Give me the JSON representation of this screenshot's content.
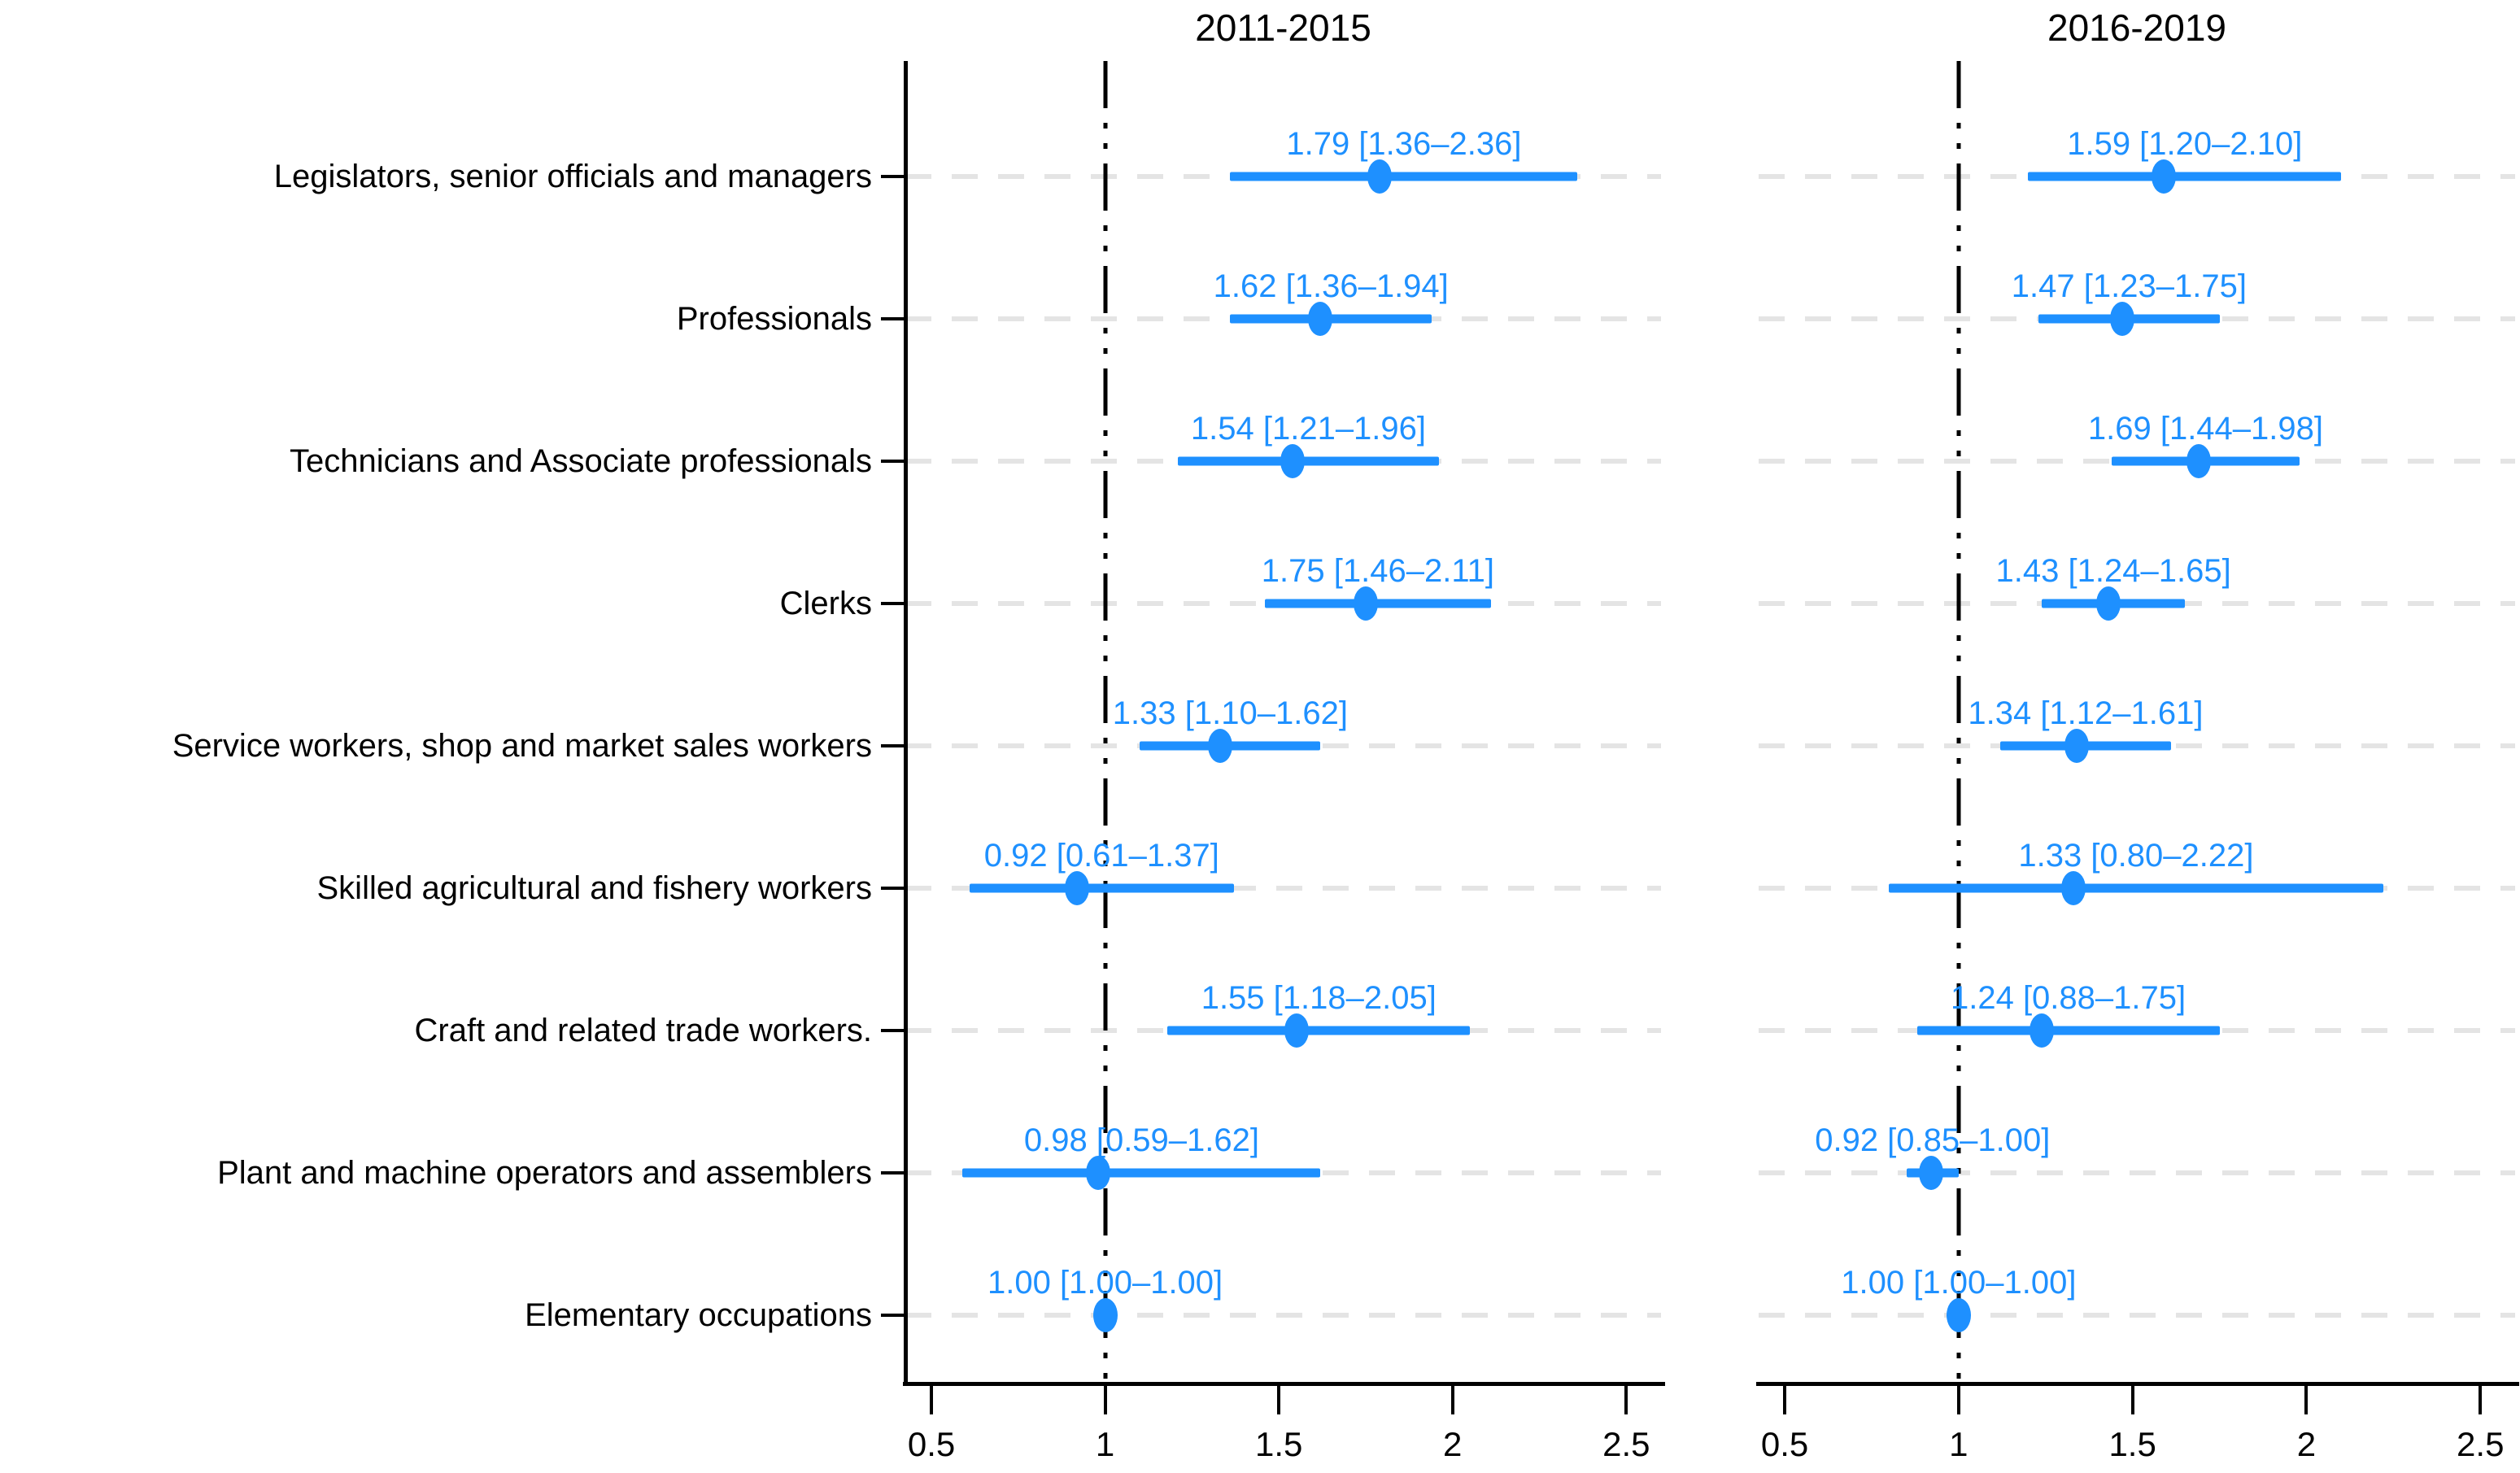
{
  "chart_data": {
    "type": "forest",
    "description": "Two-panel forest plot of estimates with 95% confidence intervals by occupation group",
    "categories": [
      "Legislators, senior officials and managers",
      "Professionals",
      "Technicians and Associate professionals",
      "Clerks",
      "Service workers, shop and market sales workers",
      "Skilled agricultural and fishery workers",
      "Craft and related trade workers.",
      "Plant and machine operators and assemblers",
      "Elementary occupations"
    ],
    "panels": [
      {
        "title": "2011-2015",
        "series": [
          {
            "est": 1.79,
            "lo": 1.36,
            "hi": 2.36,
            "label": "1.79 [1.36–2.36]"
          },
          {
            "est": 1.62,
            "lo": 1.36,
            "hi": 1.94,
            "label": "1.62 [1.36–1.94]"
          },
          {
            "est": 1.54,
            "lo": 1.21,
            "hi": 1.96,
            "label": "1.54 [1.21–1.96]"
          },
          {
            "est": 1.75,
            "lo": 1.46,
            "hi": 2.11,
            "label": "1.75 [1.46–2.11]"
          },
          {
            "est": 1.33,
            "lo": 1.1,
            "hi": 1.62,
            "label": "1.33 [1.10–1.62]"
          },
          {
            "est": 0.92,
            "lo": 0.61,
            "hi": 1.37,
            "label": "0.92 [0.61–1.37]"
          },
          {
            "est": 1.55,
            "lo": 1.18,
            "hi": 2.05,
            "label": "1.55 [1.18–2.05]"
          },
          {
            "est": 0.98,
            "lo": 0.59,
            "hi": 1.62,
            "label": "0.98 [0.59–1.62]"
          },
          {
            "est": 1.0,
            "lo": 1.0,
            "hi": 1.0,
            "label": "1.00 [1.00–1.00]"
          }
        ]
      },
      {
        "title": "2016-2019",
        "series": [
          {
            "est": 1.59,
            "lo": 1.2,
            "hi": 2.1,
            "label": "1.59 [1.20–2.10]"
          },
          {
            "est": 1.47,
            "lo": 1.23,
            "hi": 1.75,
            "label": "1.47 [1.23–1.75]"
          },
          {
            "est": 1.69,
            "lo": 1.44,
            "hi": 1.98,
            "label": "1.69 [1.44–1.98]"
          },
          {
            "est": 1.43,
            "lo": 1.24,
            "hi": 1.65,
            "label": "1.43 [1.24–1.65]"
          },
          {
            "est": 1.34,
            "lo": 1.12,
            "hi": 1.61,
            "label": "1.34 [1.12–1.61]"
          },
          {
            "est": 1.33,
            "lo": 0.8,
            "hi": 2.22,
            "label": "1.33 [0.80–2.22]"
          },
          {
            "est": 1.24,
            "lo": 0.88,
            "hi": 1.75,
            "label": "1.24 [0.88–1.75]"
          },
          {
            "est": 0.92,
            "lo": 0.85,
            "hi": 1.0,
            "label": "0.92 [0.85–1.00]"
          },
          {
            "est": 1.0,
            "lo": 1.0,
            "hi": 1.0,
            "label": "1.00 [1.00–1.00]"
          }
        ]
      }
    ],
    "x_axis": {
      "tick_labels": [
        "0.5",
        "1",
        "1.5",
        "2",
        "2.5"
      ],
      "tick_values": [
        0.5,
        1,
        1.5,
        2,
        2.5
      ],
      "range": [
        0.425,
        2.6
      ]
    },
    "reference_line_x": 1,
    "colors": {
      "estimate": "#1E90FF",
      "gridline": "#E4E4E4",
      "axis": "#000000",
      "reference_line": "#000000",
      "text": "#000000"
    },
    "layout_hints": {
      "grid": "horizontal dashed gridline per category",
      "reference_line_style": "vertical dash-dot at x=1",
      "legend": "none",
      "left_spine_panels": [
        true,
        false
      ]
    }
  }
}
